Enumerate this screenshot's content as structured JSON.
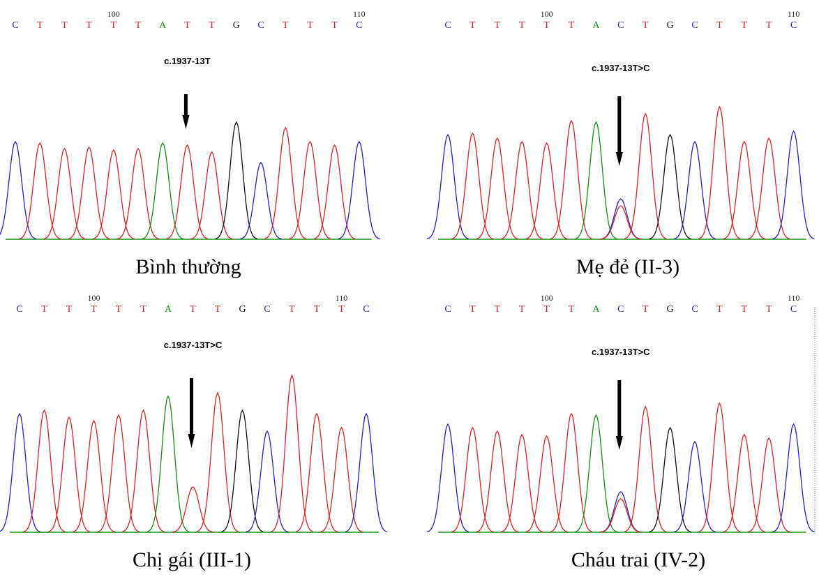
{
  "panels": [
    {
      "bases": [
        "C",
        "T",
        "T",
        "T",
        "T",
        "T",
        "A",
        "T",
        "T",
        "G",
        "C",
        "T",
        "T",
        "T",
        "C"
      ],
      "positions": [
        "100",
        "110"
      ],
      "mutation": "c.1937-13T",
      "caption": "Bình thường"
    },
    {
      "bases": [
        "C",
        "T",
        "T",
        "T",
        "T",
        "T",
        "A",
        "C",
        "T",
        "G",
        "C",
        "T",
        "T",
        "T",
        "C"
      ],
      "positions": [
        "100",
        "110"
      ],
      "mutation": "c.1937-13T>C",
      "caption": "Mẹ đẻ (II-3)"
    },
    {
      "bases": [
        "C",
        "T",
        "T",
        "T",
        "T",
        "T",
        "A",
        "T",
        "T",
        "G",
        "C",
        "T",
        "T",
        "T",
        "C"
      ],
      "positions": [
        "100",
        "110"
      ],
      "mutation": "c.1937-13T>C",
      "caption": "Chị gái (III-1)"
    },
    {
      "bases": [
        "C",
        "T",
        "T",
        "T",
        "T",
        "T",
        "A",
        "C",
        "T",
        "G",
        "C",
        "T",
        "T",
        "T",
        "C"
      ],
      "positions": [
        "100",
        "110"
      ],
      "mutation": "c.1937-13T>C",
      "caption": "Cháu trai (IV-2)"
    }
  ]
}
